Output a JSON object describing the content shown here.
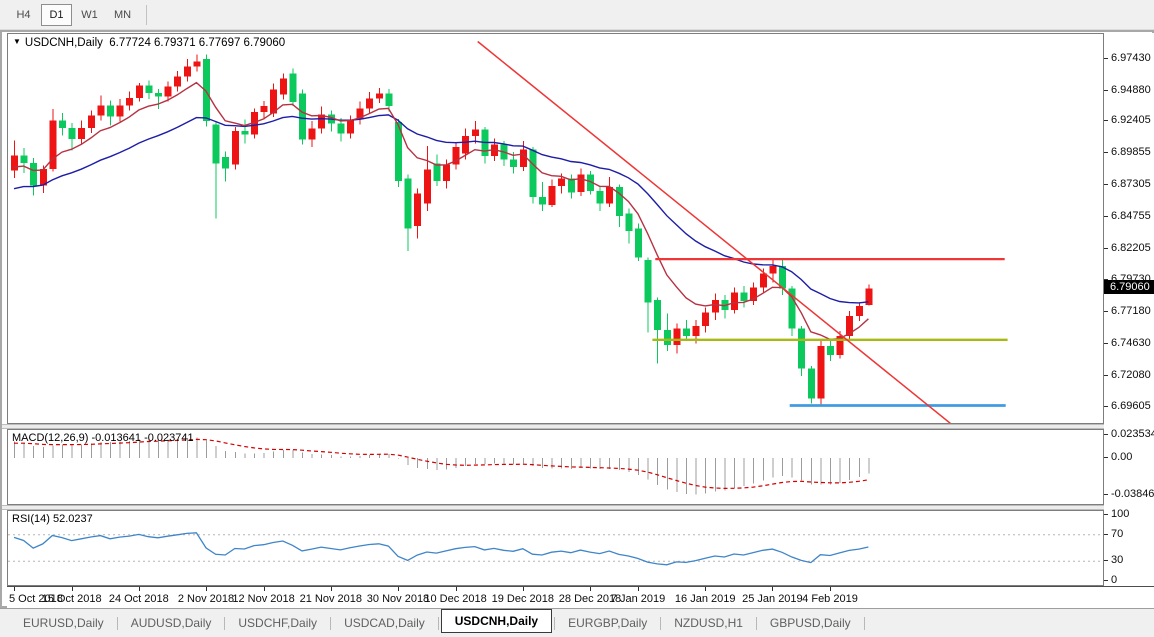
{
  "toolbar": {
    "timeframes": [
      {
        "label": "H4",
        "active": false
      },
      {
        "label": "D1",
        "active": true
      },
      {
        "label": "W1",
        "active": false
      },
      {
        "label": "MN",
        "active": false
      }
    ]
  },
  "chart": {
    "title": {
      "dropdown_glyph": "▼",
      "symbol": "USDCNH,Daily",
      "ohlc": "6.77724 6.79371 6.77697 6.79060"
    },
    "macd_label": "MACD(12,26,9) -0.013641 -0.023741",
    "rsi_label": "RSI(14) 52.0237"
  },
  "chart_data": {
    "type": "candlestick",
    "symbol": "USDCNH",
    "timeframe": "Daily",
    "ohlc_current": {
      "open": "6.77724",
      "high": "6.79371",
      "low": "6.77697",
      "close": "6.79060"
    },
    "current_price": 6.7906,
    "current_price_label": "6.79060",
    "price_domain": [
      6.683,
      6.994
    ],
    "price_axis_ticks": [
      "6.97430",
      "6.94880",
      "6.92405",
      "6.89855",
      "6.87305",
      "6.84755",
      "6.82205",
      "6.79730",
      "6.77180",
      "6.74630",
      "6.72080",
      "6.69605"
    ],
    "x_axis": {
      "tick_indices": [
        0,
        6,
        13,
        20,
        26,
        33,
        40,
        46,
        53,
        60,
        65,
        72,
        79,
        85
      ],
      "tick_labels": [
        "5 Oct 2018",
        "15 Oct 2018",
        "24 Oct 2018",
        "2 Nov 2018",
        "12 Nov 2018",
        "21 Nov 2018",
        "30 Nov 2018",
        "10 Dec 2018",
        "19 Dec 2018",
        "28 Dec 2018",
        "7 Jan 2019",
        "16 Jan 2019",
        "25 Jan 2019",
        "4 Feb 2019"
      ]
    },
    "candles": [
      [
        6.885,
        6.909,
        6.879,
        6.897
      ],
      [
        6.897,
        6.903,
        6.883,
        6.891
      ],
      [
        6.891,
        6.895,
        6.865,
        6.873
      ],
      [
        6.873,
        6.889,
        6.867,
        6.886
      ],
      [
        6.886,
        6.934,
        6.884,
        6.925
      ],
      [
        6.925,
        6.931,
        6.913,
        6.919
      ],
      [
        6.919,
        6.923,
        6.901,
        6.91
      ],
      [
        6.91,
        6.925,
        6.906,
        6.919
      ],
      [
        6.919,
        6.933,
        6.915,
        6.929
      ],
      [
        6.929,
        6.945,
        6.925,
        6.937
      ],
      [
        6.937,
        6.941,
        6.921,
        6.928
      ],
      [
        6.928,
        6.942,
        6.924,
        6.937
      ],
      [
        6.937,
        6.948,
        6.933,
        6.943
      ],
      [
        6.943,
        6.955,
        6.94,
        6.953
      ],
      [
        6.953,
        6.957,
        6.942,
        6.947
      ],
      [
        6.947,
        6.95,
        6.934,
        6.944
      ],
      [
        6.944,
        6.956,
        6.94,
        6.952
      ],
      [
        6.952,
        6.9645,
        6.948,
        6.96
      ],
      [
        6.96,
        6.974,
        6.956,
        6.968
      ],
      [
        6.968,
        6.9775,
        6.964,
        6.972
      ],
      [
        6.974,
        6.9775,
        6.92,
        6.9245
      ],
      [
        6.9215,
        6.9245,
        6.8465,
        6.8905
      ],
      [
        6.8955,
        6.9,
        6.876,
        6.8865
      ],
      [
        6.8895,
        6.9195,
        6.8855,
        6.9165
      ],
      [
        6.9165,
        6.9255,
        6.9065,
        6.9135
      ],
      [
        6.9135,
        6.9345,
        6.9105,
        6.9315
      ],
      [
        6.9315,
        6.9405,
        6.9255,
        6.9365
      ],
      [
        6.9305,
        6.9545,
        6.9275,
        6.9495
      ],
      [
        6.9455,
        6.9625,
        6.9415,
        6.9585
      ],
      [
        6.9625,
        6.9665,
        6.9365,
        6.9395
      ],
      [
        6.9465,
        6.9495,
        6.9055,
        6.9095
      ],
      [
        6.9095,
        6.9245,
        6.9035,
        6.9185
      ],
      [
        6.9185,
        6.936,
        6.9145,
        6.9295
      ],
      [
        6.9295,
        6.933,
        6.916,
        6.9225
      ],
      [
        6.9225,
        6.927,
        6.908,
        6.9145
      ],
      [
        6.9145,
        6.929,
        6.9105,
        6.9255
      ],
      [
        6.9255,
        6.94,
        6.9215,
        6.9345
      ],
      [
        6.9345,
        6.9475,
        6.9305,
        6.9425
      ],
      [
        6.9425,
        6.951,
        6.939,
        6.9465
      ],
      [
        6.9465,
        6.95,
        6.932,
        6.9365
      ],
      [
        6.9235,
        6.926,
        6.8715,
        6.8765
      ],
      [
        6.8785,
        6.8815,
        6.8205,
        6.8385
      ],
      [
        6.8405,
        6.8705,
        6.8305,
        6.8665
      ],
      [
        6.8585,
        6.9045,
        6.8525,
        6.8855
      ],
      [
        6.8905,
        6.8975,
        6.8725,
        6.8765
      ],
      [
        6.8765,
        6.8935,
        6.8705,
        6.8895
      ],
      [
        6.8895,
        6.9075,
        6.8855,
        6.9035
      ],
      [
        6.8985,
        6.9185,
        6.8935,
        6.9125
      ],
      [
        6.9125,
        6.9245,
        6.9065,
        6.9175
      ],
      [
        6.9175,
        6.9195,
        6.8905,
        6.8965
      ],
      [
        6.8965,
        6.9105,
        6.8925,
        6.9055
      ],
      [
        6.9055,
        6.9085,
        6.8885,
        6.8935
      ],
      [
        6.8935,
        6.8995,
        6.8825,
        6.8875
      ],
      [
        6.8875,
        6.9085,
        6.8845,
        6.9015
      ],
      [
        6.9015,
        6.9035,
        6.8585,
        6.8635
      ],
      [
        6.8635,
        6.8755,
        6.8525,
        6.8575
      ],
      [
        6.8575,
        6.8775,
        6.8555,
        6.8725
      ],
      [
        6.8725,
        6.8825,
        6.8665,
        6.8785
      ],
      [
        6.8785,
        6.8815,
        6.8625,
        6.8675
      ],
      [
        6.8675,
        6.8865,
        6.8645,
        6.8815
      ],
      [
        6.8815,
        6.8845,
        6.8655,
        6.8685
      ],
      [
        6.8685,
        6.8725,
        6.8525,
        6.8585
      ],
      [
        6.8585,
        6.8795,
        6.8555,
        6.8715
      ],
      [
        6.8715,
        6.8735,
        6.8395,
        6.8485
      ],
      [
        6.8505,
        6.8545,
        6.8265,
        6.8365
      ],
      [
        6.8385,
        6.8425,
        6.8125,
        6.8155
      ],
      [
        6.8135,
        6.8155,
        6.7555,
        6.7795
      ],
      [
        6.7815,
        6.7835,
        6.7305,
        6.7575
      ],
      [
        6.7575,
        6.7705,
        6.7405,
        6.7455
      ],
      [
        6.7455,
        6.7625,
        6.7385,
        6.7585
      ],
      [
        6.7585,
        6.7655,
        6.7485,
        6.7525
      ],
      [
        6.7525,
        6.7655,
        6.7465,
        6.7605
      ],
      [
        6.7605,
        6.7755,
        6.7555,
        6.7715
      ],
      [
        6.7715,
        6.7865,
        6.7655,
        6.7815
      ],
      [
        6.7815,
        6.7855,
        6.7665,
        6.7735
      ],
      [
        6.7735,
        6.7915,
        6.7705,
        6.7875
      ],
      [
        6.7875,
        6.7925,
        6.7755,
        6.7805
      ],
      [
        6.7805,
        6.7955,
        6.7775,
        6.7915
      ],
      [
        6.7915,
        6.8065,
        6.7875,
        6.8025
      ],
      [
        6.8025,
        6.814,
        6.7955,
        6.8085
      ],
      [
        6.8085,
        6.8135,
        6.7855,
        6.7905
      ],
      [
        6.7905,
        6.7925,
        6.7525,
        6.7585
      ],
      [
        6.7585,
        6.7605,
        6.7205,
        6.7265
      ],
      [
        6.7265,
        6.7285,
        6.6985,
        6.7025
      ],
      [
        6.7025,
        6.7485,
        6.6975,
        6.7445
      ],
      [
        6.7445,
        6.7505,
        6.7325,
        6.7375
      ],
      [
        6.7375,
        6.7565,
        6.7345,
        6.7525
      ],
      [
        6.7525,
        6.7725,
        6.7485,
        6.7685
      ],
      [
        6.7685,
        6.7795,
        6.7645,
        6.7765
      ],
      [
        6.77724,
        6.79371,
        6.77697,
        6.7906
      ]
    ],
    "overlays": {
      "ma_fast": {
        "type": "ema",
        "period": 8,
        "seed": 6.885
      },
      "ma_slow": {
        "type": "ema",
        "period": 24,
        "seed": 6.868
      },
      "resistance_line": {
        "price": 6.814,
        "i1": 66.8,
        "i2": 103.2
      },
      "support_line": {
        "price": 6.7495,
        "i1": 66.5,
        "i2": 103.5
      },
      "lower_support_line": {
        "price": 6.697,
        "i1": 80.8,
        "i2": 103.3
      },
      "trendline": {
        "i1": 48.3,
        "p1": 6.988,
        "i2": 98.3,
        "p2": 6.678
      }
    },
    "macd": {
      "fast": 12,
      "slow": 26,
      "signal": 9,
      "value": "-0.013641",
      "signal_value": "-0.023741",
      "axis_ticks": [
        "0.023534",
        "0.00",
        "-0.038466"
      ],
      "domain": [
        -0.0475,
        0.0285
      ]
    },
    "rsi": {
      "period": 14,
      "value": "52.0237",
      "levels": [
        70,
        30
      ],
      "axis_ticks": [
        "100",
        "70",
        "30",
        "0"
      ]
    }
  },
  "tabs": {
    "items": [
      {
        "label": "EURUSD,Daily",
        "active": false
      },
      {
        "label": "AUDUSD,Daily",
        "active": false
      },
      {
        "label": "USDCHF,Daily",
        "active": false
      },
      {
        "label": "USDCAD,Daily",
        "active": false
      },
      {
        "label": "USDCNH,Daily",
        "active": true
      },
      {
        "label": "EURGBP,Daily",
        "active": false
      },
      {
        "label": "NZDUSD,H1",
        "active": false
      },
      {
        "label": "GBPUSD,Daily",
        "active": false
      }
    ]
  },
  "colors": {
    "bull": "#ee1414",
    "bear": "#0cc95e",
    "ma_fast": "#b73142",
    "ma_slow": "#1d1da8",
    "trendline": "#ef3535",
    "hline_resistance": "#ef3535",
    "hline_support": "#a6ba12",
    "hline_low": "#3f9be0",
    "macd_hist": "#9c9c9c",
    "macd_signal": "#d40000",
    "rsi_line": "#3f85c9",
    "rsi_levels": "#b5b5b5",
    "badge_bg": "#000000",
    "badge_text": "#ffffff"
  }
}
